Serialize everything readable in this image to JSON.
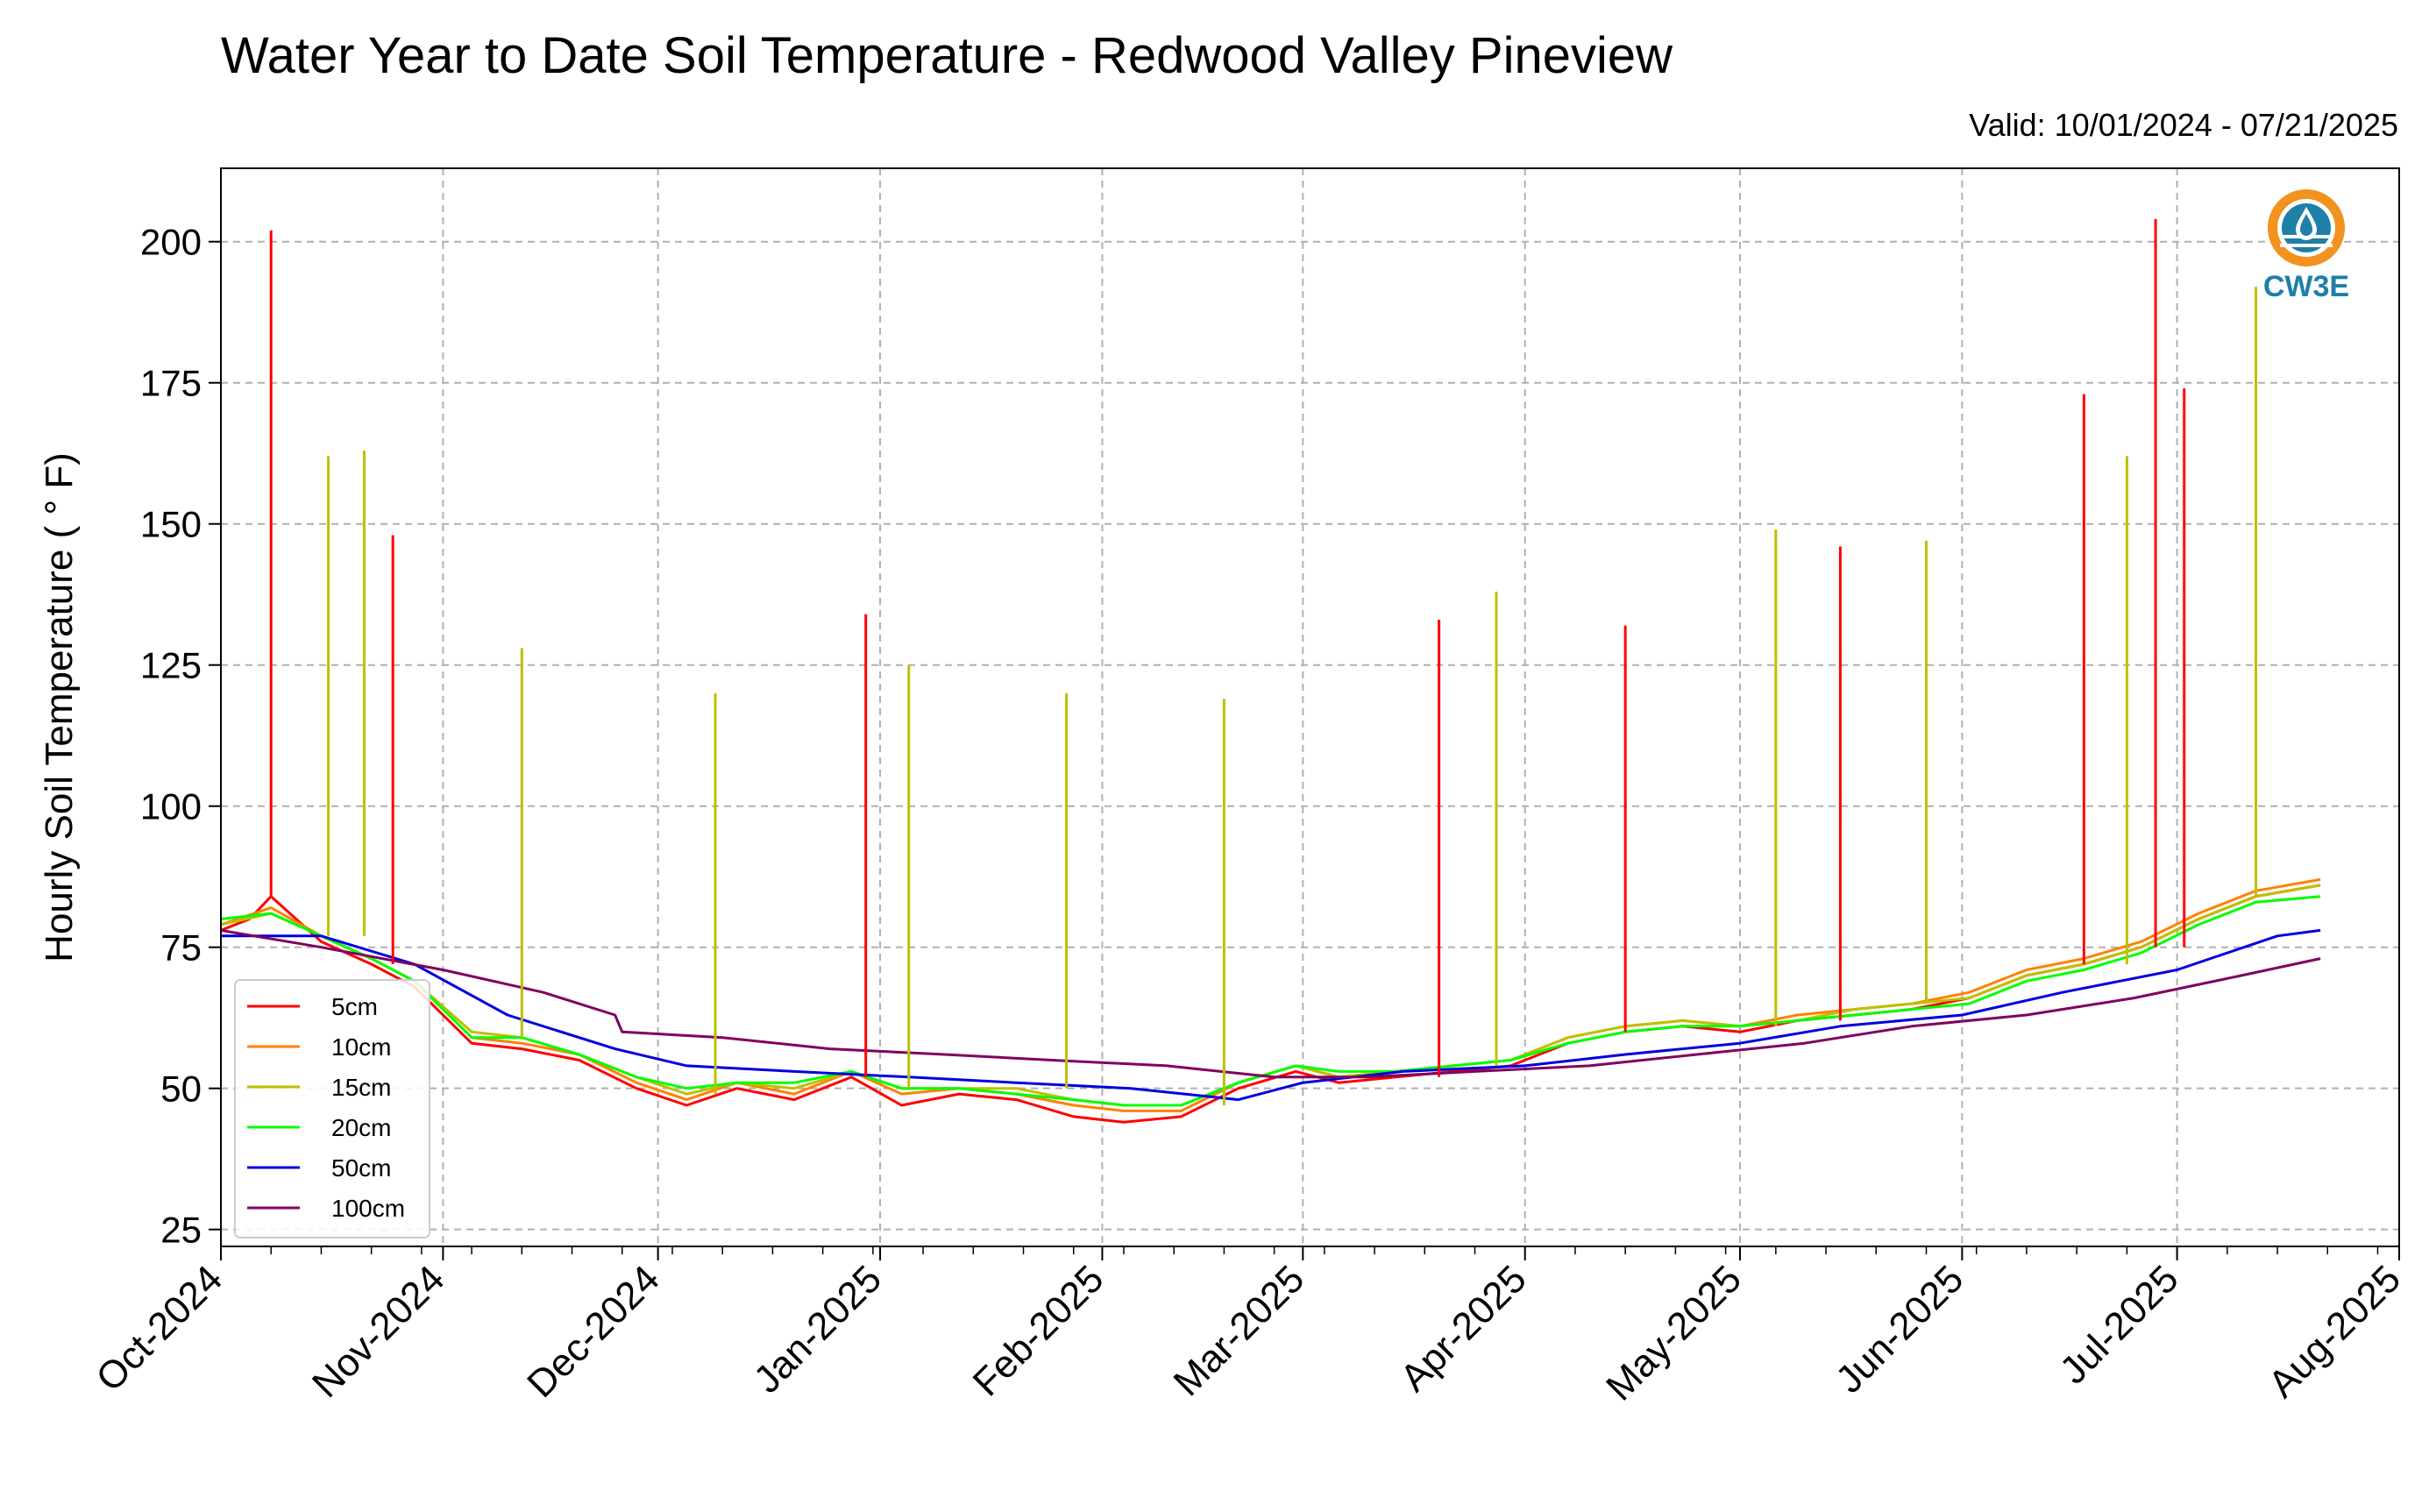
{
  "title": "Water Year to Date Soil Temperature - Redwood Valley Pineview",
  "subtitle": "Valid: 10/01/2024 - 07/21/2025",
  "logo": {
    "text": "CW3E",
    "icon": "water-drop-sun-logo",
    "colors": {
      "orange": "#f2921f",
      "teal": "#1f7fa6"
    }
  },
  "chart_data": {
    "type": "line",
    "xlabel": "",
    "ylabel": "Hourly Soil Temperature ( ° F)",
    "xlim": [
      "2024-10-01",
      "2025-08-01"
    ],
    "ylim": [
      22,
      213
    ],
    "yticks": [
      25,
      50,
      75,
      100,
      125,
      150,
      175,
      200
    ],
    "xticks": [
      {
        "date": "2024-10-01",
        "label": "Oct-2024"
      },
      {
        "date": "2024-11-01",
        "label": "Nov-2024"
      },
      {
        "date": "2024-12-01",
        "label": "Dec-2024"
      },
      {
        "date": "2025-01-01",
        "label": "Jan-2025"
      },
      {
        "date": "2025-02-01",
        "label": "Feb-2025"
      },
      {
        "date": "2025-03-01",
        "label": "Mar-2025"
      },
      {
        "date": "2025-04-01",
        "label": "Apr-2025"
      },
      {
        "date": "2025-05-01",
        "label": "May-2025"
      },
      {
        "date": "2025-06-01",
        "label": "Jun-2025"
      },
      {
        "date": "2025-07-01",
        "label": "Jul-2025"
      },
      {
        "date": "2025-08-01",
        "label": "Aug-2025"
      }
    ],
    "grid": true,
    "legend_position": "lower-left",
    "series": [
      {
        "name": "5cm",
        "color": "#ff0000",
        "x": [
          "2024-10-01",
          "2024-10-05",
          "2024-10-08",
          "2024-10-15",
          "2024-10-22",
          "2024-10-28",
          "2024-11-05",
          "2024-11-12",
          "2024-11-20",
          "2024-11-28",
          "2024-12-05",
          "2024-12-12",
          "2024-12-20",
          "2024-12-28",
          "2025-01-04",
          "2025-01-12",
          "2025-01-20",
          "2025-01-28",
          "2025-02-04",
          "2025-02-12",
          "2025-02-20",
          "2025-02-28",
          "2025-03-06",
          "2025-03-14",
          "2025-03-22",
          "2025-03-30",
          "2025-04-07",
          "2025-04-15",
          "2025-04-23",
          "2025-05-01",
          "2025-05-09",
          "2025-05-17",
          "2025-05-25",
          "2025-06-02",
          "2025-06-10",
          "2025-06-18",
          "2025-06-26",
          "2025-07-04",
          "2025-07-12",
          "2025-07-21"
        ],
        "y": [
          78,
          80,
          84,
          76,
          72,
          68,
          58,
          57,
          55,
          50,
          47,
          50,
          48,
          52,
          47,
          49,
          48,
          45,
          44,
          45,
          50,
          53,
          51,
          52,
          53,
          54,
          58,
          60,
          61,
          60,
          62,
          63,
          64,
          66,
          70,
          72,
          75,
          80,
          84,
          86
        ]
      },
      {
        "name": "10cm",
        "color": "#ff8000",
        "x": [
          "2024-10-01",
          "2024-10-08",
          "2024-10-15",
          "2024-10-22",
          "2024-10-28",
          "2024-11-05",
          "2024-11-12",
          "2024-11-20",
          "2024-11-28",
          "2024-12-05",
          "2024-12-12",
          "2024-12-20",
          "2024-12-28",
          "2025-01-04",
          "2025-01-12",
          "2025-01-20",
          "2025-01-28",
          "2025-02-04",
          "2025-02-12",
          "2025-02-20",
          "2025-02-28",
          "2025-03-06",
          "2025-03-14",
          "2025-03-22",
          "2025-03-30",
          "2025-04-07",
          "2025-04-15",
          "2025-04-23",
          "2025-05-01",
          "2025-05-09",
          "2025-05-17",
          "2025-05-25",
          "2025-06-02",
          "2025-06-10",
          "2025-06-18",
          "2025-06-26",
          "2025-07-04",
          "2025-07-12",
          "2025-07-21"
        ],
        "y": [
          79,
          82,
          77,
          73,
          69,
          59,
          58,
          56,
          51,
          48,
          51,
          49,
          53,
          49,
          50,
          49,
          47,
          46,
          46,
          51,
          54,
          52,
          53,
          54,
          55,
          59,
          61,
          62,
          61,
          63,
          64,
          65,
          67,
          71,
          73,
          76,
          81,
          85,
          87
        ]
      },
      {
        "name": "15cm",
        "color": "#bfbf00",
        "x": [
          "2024-10-01",
          "2024-10-08",
          "2024-10-15",
          "2024-10-22",
          "2024-10-28",
          "2024-11-05",
          "2024-11-12",
          "2024-11-20",
          "2024-11-28",
          "2024-12-05",
          "2024-12-12",
          "2024-12-20",
          "2024-12-28",
          "2025-01-04",
          "2025-01-12",
          "2025-01-20",
          "2025-01-28",
          "2025-02-04",
          "2025-02-12",
          "2025-02-20",
          "2025-02-28",
          "2025-03-06",
          "2025-03-14",
          "2025-03-22",
          "2025-03-30",
          "2025-04-07",
          "2025-04-15",
          "2025-04-23",
          "2025-05-01",
          "2025-05-09",
          "2025-05-17",
          "2025-05-25",
          "2025-06-02",
          "2025-06-10",
          "2025-06-18",
          "2025-06-26",
          "2025-07-04",
          "2025-07-12",
          "2025-07-21"
        ],
        "y": [
          79,
          81,
          77,
          73,
          69,
          60,
          59,
          56,
          52,
          49,
          51,
          50,
          53,
          50,
          50,
          50,
          48,
          47,
          47,
          51,
          54,
          52,
          53,
          54,
          55,
          59,
          61,
          62,
          61,
          62,
          64,
          65,
          66,
          70,
          72,
          75,
          80,
          84,
          86
        ]
      },
      {
        "name": "20cm",
        "color": "#00ff00",
        "x": [
          "2024-10-01",
          "2024-10-08",
          "2024-10-15",
          "2024-10-22",
          "2024-10-28",
          "2024-11-05",
          "2024-11-12",
          "2024-11-20",
          "2024-11-28",
          "2024-12-05",
          "2024-12-12",
          "2024-12-20",
          "2024-12-28",
          "2025-01-04",
          "2025-01-12",
          "2025-01-20",
          "2025-01-28",
          "2025-02-04",
          "2025-02-12",
          "2025-02-20",
          "2025-02-28",
          "2025-03-06",
          "2025-03-14",
          "2025-03-22",
          "2025-03-30",
          "2025-04-07",
          "2025-04-15",
          "2025-04-23",
          "2025-05-01",
          "2025-05-09",
          "2025-05-17",
          "2025-05-25",
          "2025-06-02",
          "2025-06-10",
          "2025-06-18",
          "2025-06-26",
          "2025-07-04",
          "2025-07-12",
          "2025-07-21"
        ],
        "y": [
          80,
          81,
          77,
          73,
          69,
          59,
          59,
          56,
          52,
          50,
          51,
          51,
          53,
          50,
          50,
          49,
          48,
          47,
          47,
          51,
          54,
          53,
          53,
          54,
          55,
          58,
          60,
          61,
          61,
          62,
          63,
          64,
          65,
          69,
          71,
          74,
          79,
          83,
          84
        ]
      },
      {
        "name": "50cm",
        "color": "#0000e0",
        "x": [
          "2024-10-01",
          "2024-10-15",
          "2024-10-28",
          "2024-11-10",
          "2024-11-25",
          "2024-12-05",
          "2024-12-20",
          "2025-01-05",
          "2025-01-20",
          "2025-02-05",
          "2025-02-20",
          "2025-03-01",
          "2025-03-15",
          "2025-04-01",
          "2025-04-15",
          "2025-05-01",
          "2025-05-15",
          "2025-06-01",
          "2025-06-15",
          "2025-07-01",
          "2025-07-15",
          "2025-07-21"
        ],
        "y": [
          77,
          77,
          72,
          63,
          57,
          54,
          53,
          52,
          51,
          50,
          48,
          51,
          53,
          54,
          56,
          58,
          61,
          63,
          67,
          71,
          77,
          78
        ]
      },
      {
        "name": "100cm",
        "color": "#800060",
        "x": [
          "2024-10-01",
          "2024-10-15",
          "2024-11-01",
          "2024-11-15",
          "2024-11-25",
          "2024-11-26",
          "2024-12-10",
          "2024-12-25",
          "2025-01-10",
          "2025-01-25",
          "2025-02-10",
          "2025-02-25",
          "2025-03-10",
          "2025-03-25",
          "2025-04-10",
          "2025-04-25",
          "2025-05-10",
          "2025-05-25",
          "2025-06-10",
          "2025-06-25",
          "2025-07-10",
          "2025-07-21"
        ],
        "y": [
          78,
          75,
          71,
          67,
          63,
          60,
          59,
          57,
          56,
          55,
          54,
          52,
          52,
          53,
          54,
          56,
          58,
          61,
          63,
          66,
          70,
          73
        ]
      }
    ],
    "spikes": [
      {
        "series": "5cm",
        "x": "2024-10-08",
        "y": 202
      },
      {
        "series": "5cm",
        "x": "2024-10-25",
        "y": 148
      },
      {
        "series": "5cm",
        "x": "2024-12-30",
        "y": 134
      },
      {
        "series": "5cm",
        "x": "2025-03-20",
        "y": 133
      },
      {
        "series": "5cm",
        "x": "2025-04-15",
        "y": 132
      },
      {
        "series": "5cm",
        "x": "2025-05-15",
        "y": 146
      },
      {
        "series": "5cm",
        "x": "2025-06-18",
        "y": 173
      },
      {
        "series": "5cm",
        "x": "2025-06-28",
        "y": 204
      },
      {
        "series": "5cm",
        "x": "2025-07-02",
        "y": 174
      },
      {
        "series": "15cm",
        "x": "2024-10-16",
        "y": 162
      },
      {
        "series": "15cm",
        "x": "2024-10-21",
        "y": 163
      },
      {
        "series": "15cm",
        "x": "2024-11-12",
        "y": 128
      },
      {
        "series": "15cm",
        "x": "2024-12-09",
        "y": 120
      },
      {
        "series": "15cm",
        "x": "2025-01-05",
        "y": 125
      },
      {
        "series": "15cm",
        "x": "2025-01-27",
        "y": 120
      },
      {
        "series": "15cm",
        "x": "2025-02-18",
        "y": 119
      },
      {
        "series": "15cm",
        "x": "2025-03-28",
        "y": 138
      },
      {
        "series": "15cm",
        "x": "2025-05-06",
        "y": 149
      },
      {
        "series": "15cm",
        "x": "2025-05-27",
        "y": 147
      },
      {
        "series": "15cm",
        "x": "2025-06-24",
        "y": 162
      },
      {
        "series": "15cm",
        "x": "2025-07-12",
        "y": 192
      }
    ]
  }
}
